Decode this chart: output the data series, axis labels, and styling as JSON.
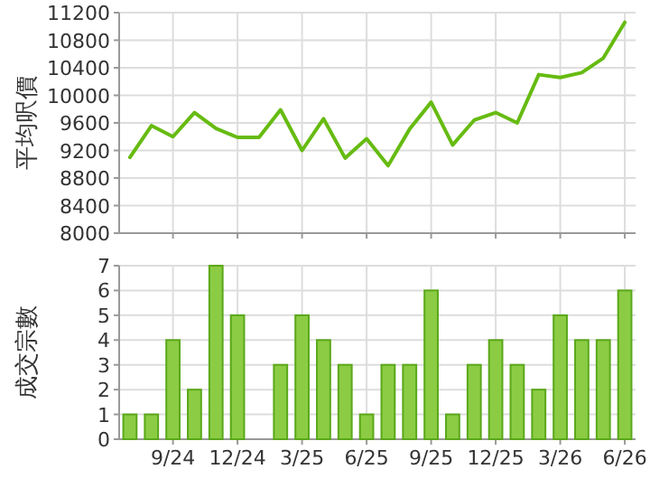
{
  "chart_data": [
    {
      "type": "line",
      "ylabel": "平均呎價",
      "categories": [
        null,
        null,
        null,
        null,
        null,
        null,
        null,
        null,
        null,
        null,
        null,
        null,
        null,
        null,
        null,
        null,
        null,
        null,
        null,
        null,
        null,
        null,
        null,
        null
      ],
      "series": [
        {
          "color": "#66bb11",
          "values": [
            9100,
            9560,
            9400,
            9750,
            9520,
            9390,
            9390,
            9790,
            9200,
            9660,
            9090,
            9370,
            8980,
            9510,
            9900,
            9280,
            9640,
            9750,
            9600,
            10300,
            10260,
            10330,
            10540,
            11060
          ]
        }
      ],
      "ylim": [
        8000,
        11200
      ],
      "yticks": [
        8000,
        8400,
        8800,
        9200,
        9600,
        10000,
        10400,
        10800,
        11200
      ],
      "grid": true,
      "tick_labels": "y",
      "marker": "none"
    },
    {
      "type": "bar",
      "ylabel": "成交宗數",
      "categories": [
        null,
        null,
        "9/24",
        null,
        null,
        "12/24",
        null,
        null,
        "3/25",
        null,
        null,
        "6/25",
        null,
        null,
        "9/25",
        null,
        null,
        "12/25",
        null,
        null,
        "3/26",
        null,
        null,
        "6/26"
      ],
      "series": [
        {
          "color": "#8ccc44",
          "values": [
            1,
            1,
            4,
            2,
            7,
            5,
            0,
            3,
            5,
            4,
            3,
            1,
            3,
            3,
            6,
            1,
            3,
            4,
            3,
            2,
            5,
            4,
            4,
            6
          ]
        }
      ],
      "ylim": [
        0,
        7
      ],
      "yticks": [
        0,
        1,
        2,
        3,
        4,
        5,
        6,
        7
      ],
      "grid": true
    }
  ]
}
